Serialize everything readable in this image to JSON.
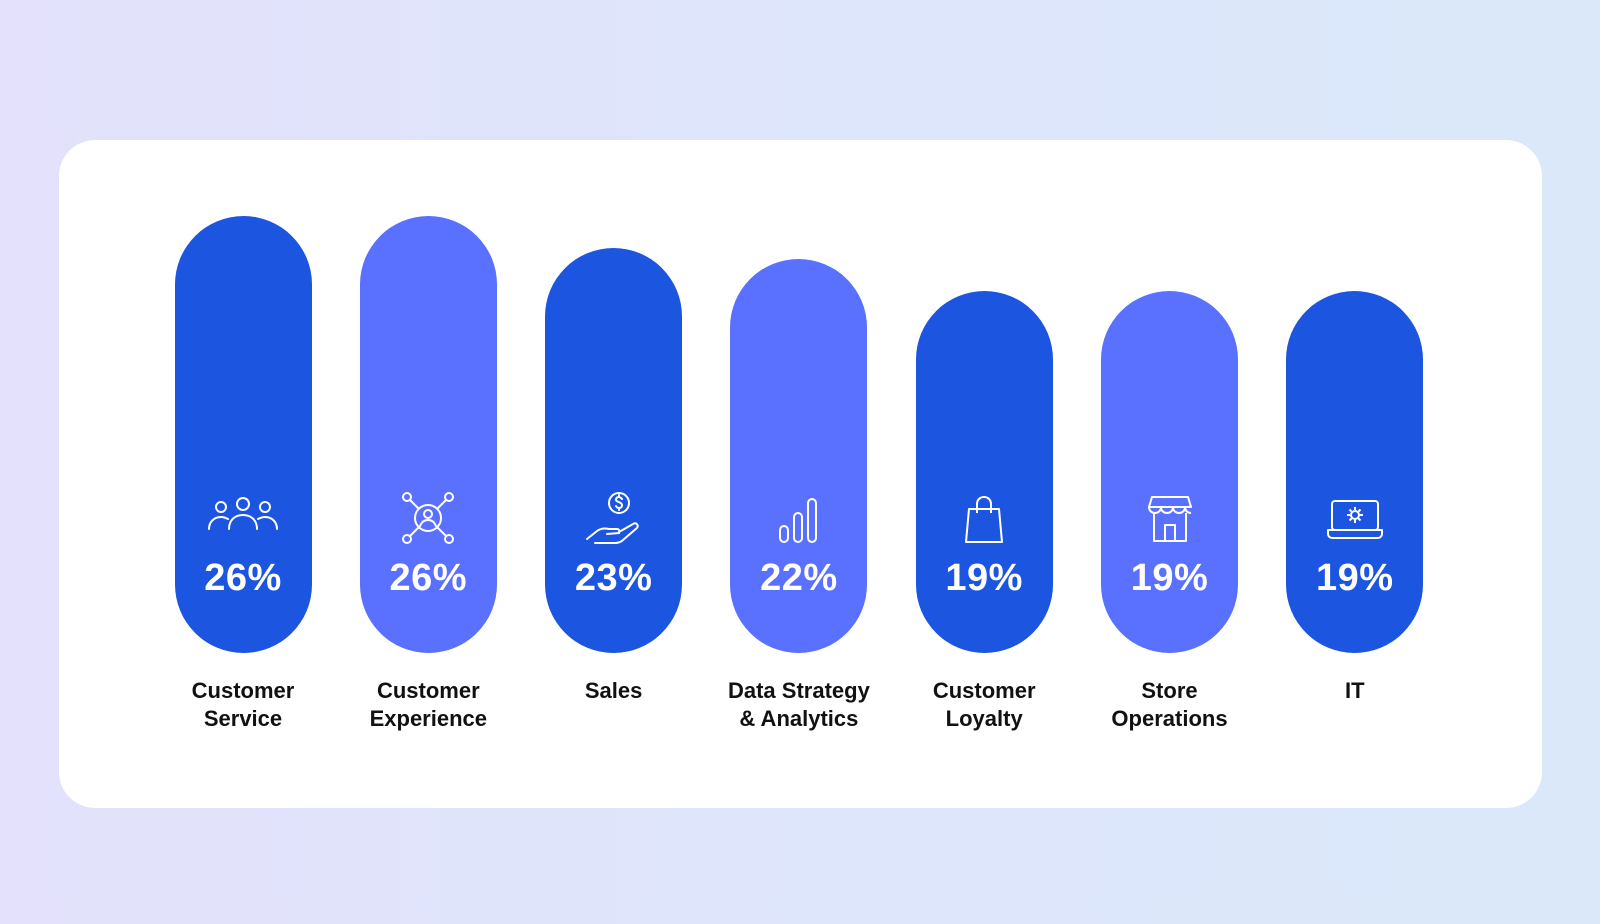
{
  "chart_data": {
    "type": "bar",
    "categories": [
      "Customer\nService",
      "Customer\nExperience",
      "Sales",
      "Data Strategy\n& Analytics",
      "Customer\nLoyalty",
      "Store\nOperations",
      "IT"
    ],
    "values": [
      26,
      26,
      23,
      22,
      19,
      19,
      19
    ],
    "value_labels": [
      "26%",
      "26%",
      "23%",
      "22%",
      "19%",
      "19%",
      "19%"
    ],
    "icons": [
      "people-group-icon",
      "network-user-icon",
      "hand-money-icon",
      "signal-bars-icon",
      "shopping-bag-icon",
      "storefront-icon",
      "laptop-gear-icon"
    ],
    "bar_colors": [
      "#1c55e0",
      "#5a70ff",
      "#1c55e0",
      "#5a70ff",
      "#1c55e0",
      "#5a70ff",
      "#1c55e0"
    ],
    "title": "",
    "xlabel": "",
    "ylabel": "",
    "ylim": [
      0,
      26
    ],
    "grid": false,
    "legend": "none"
  }
}
